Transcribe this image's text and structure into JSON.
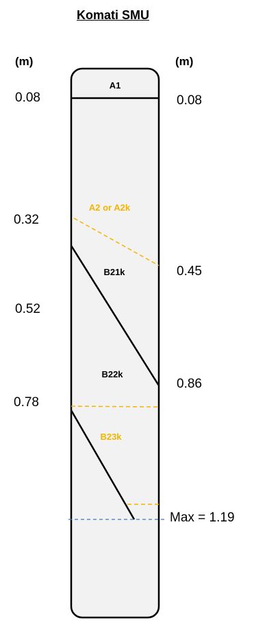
{
  "title": "Komati SMU",
  "units": {
    "left": "(m)",
    "right": "(m)"
  },
  "left_depths": [
    "0.08",
    "0.32",
    "0.52",
    "0.78"
  ],
  "right_depths": [
    "0.08",
    "0.45",
    "0.86"
  ],
  "max_label": "Max = 1.19",
  "horizons": [
    {
      "name": "A1",
      "color": "#000000"
    },
    {
      "name": "A2 or A2k",
      "color": "#f4b400"
    },
    {
      "name": "B21k",
      "color": "#000000"
    },
    {
      "name": "B22k",
      "color": "#000000"
    },
    {
      "name": "B23k",
      "color": "#f4b400"
    }
  ],
  "colors": {
    "column_fill": "#f2f2f2",
    "boundary_solid": "#000000",
    "boundary_dashed_orange": "#f4b400",
    "max_line_blue": "#4472c4"
  }
}
